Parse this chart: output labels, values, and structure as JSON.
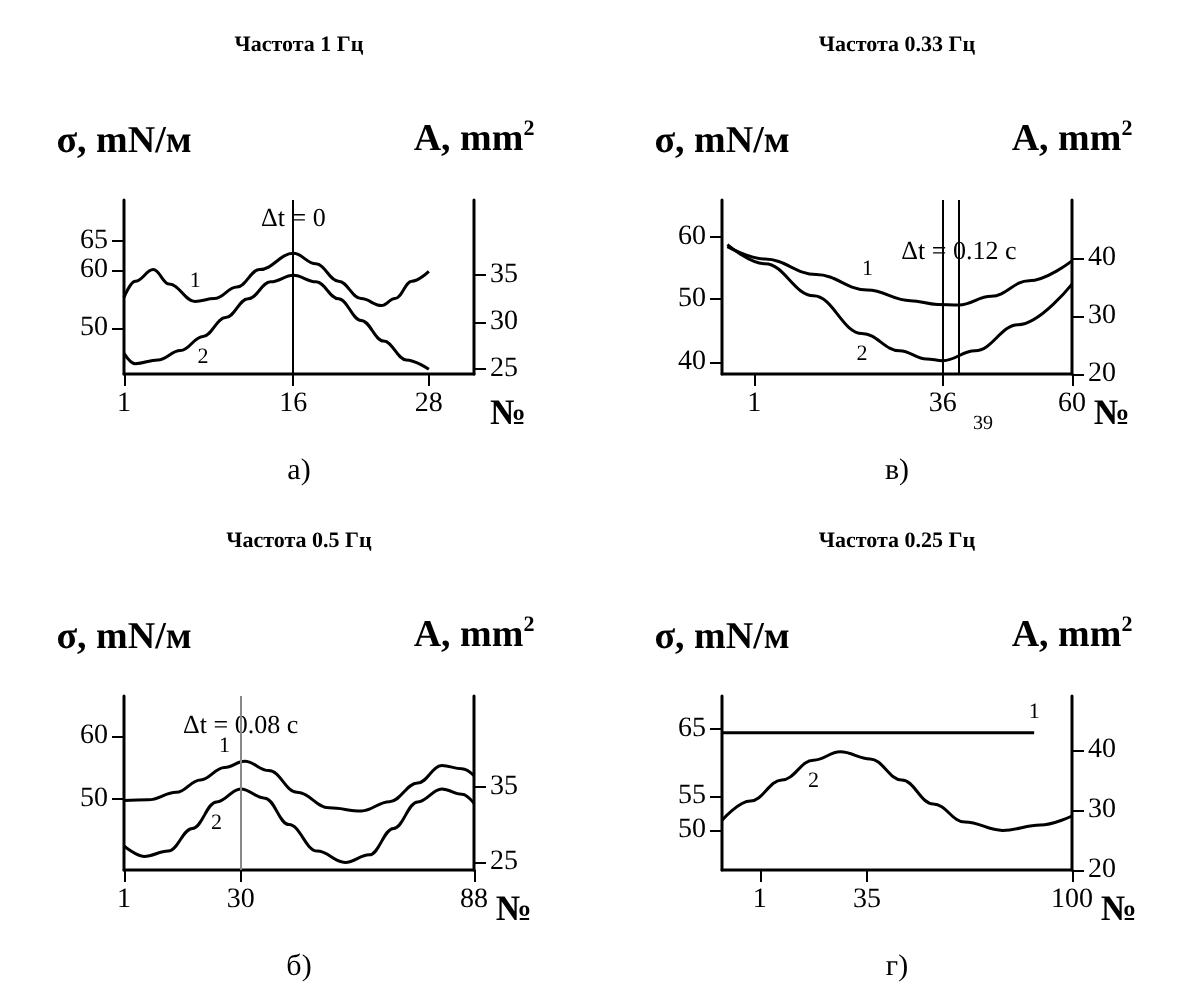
{
  "chart_data": [
    {
      "type": "line",
      "title": "Частота 1 Гц",
      "ylabel": "σ, mN/м",
      "y2label": "A, mm$^{2}$",
      "xlabel": "№",
      "annotations": [
        "а)",
        {
          "text": "Δt = 0",
          "x": 16,
          "y": 69
        }
      ],
      "xlim": [
        1,
        32
      ],
      "xticks": [
        1,
        16,
        28
      ],
      "ylim": [
        42,
        72
      ],
      "yticks": [
        50,
        60,
        65
      ],
      "y2lim": [
        24.5,
        43
      ],
      "y2ticks": [
        25,
        30,
        35
      ],
      "grid": false,
      "legend": false,
      "ref_lines": [
        {
          "axis": "x",
          "value": 16,
          "color": "#000000"
        }
      ],
      "series": [
        {
          "name": "1",
          "color": "#000000",
          "x": [
            1,
            2,
            3.6,
            5,
            7.3,
            9,
            11,
            13,
            16,
            18,
            20,
            22,
            23.8,
            25,
            26.5,
            28
          ],
          "values": [
            55.2,
            58,
            60,
            57.5,
            54.5,
            55,
            57,
            60,
            62.8,
            61,
            58,
            55,
            53.8,
            55,
            58,
            59.7
          ]
        },
        {
          "name": "2",
          "color": "#000000",
          "axis": "y2",
          "x": [
            1,
            2,
            4,
            6,
            8,
            10,
            12,
            14,
            16,
            18,
            20,
            22,
            24,
            26,
            28
          ],
          "values": [
            26.7,
            25.6,
            26,
            27,
            28.5,
            30.5,
            32.5,
            34.3,
            35,
            34.3,
            32.5,
            30.2,
            28,
            26,
            25
          ]
        }
      ]
    },
    {
      "type": "line",
      "title": "Частота 0.33 Гц",
      "ylabel": "σ, mN/м",
      "y2label": "A, mm$^{2}$",
      "xlabel": "№",
      "annotations": [
        "в)",
        {
          "text": "Δt = 0.12 с",
          "x": 39,
          "y": 58
        }
      ],
      "xlim": [
        -5,
        60
      ],
      "xticks": [
        1,
        36,
        60
      ],
      "ylim": [
        38,
        66
      ],
      "yticks": [
        40,
        50,
        60
      ],
      "y2lim": [
        20,
        50
      ],
      "y2ticks": [
        20,
        30,
        40
      ],
      "grid": false,
      "legend": false,
      "ref_lines": [
        {
          "axis": "x",
          "value": 36,
          "color": "#000000"
        },
        {
          "axis": "x",
          "value": 39,
          "label": "39",
          "color": "#000000"
        }
      ],
      "series": [
        {
          "name": "1",
          "color": "#000000",
          "x": [
            -4,
            3,
            12.5,
            22,
            30,
            35,
            39,
            45,
            52,
            60
          ],
          "values": [
            58.5,
            56.5,
            54,
            51.5,
            49.8,
            49.2,
            49.1,
            50.5,
            53,
            56.2
          ]
        },
        {
          "name": "2",
          "color": "#000000",
          "axis": "y2",
          "x": [
            -4,
            3,
            12,
            21,
            28,
            33,
            36,
            42,
            50,
            60
          ],
          "values": [
            42.3,
            39,
            33.5,
            27,
            24,
            22.6,
            22.3,
            24,
            28.5,
            35.5
          ]
        }
      ]
    },
    {
      "type": "line",
      "title": "Частота 0.5 Гц",
      "ylabel": "σ, mN/м",
      "y2label": "A, mm$^{2}$",
      "xlabel": "№",
      "annotations": [
        "б)",
        {
          "text": "Δt = 0.08 с",
          "x": 30,
          "y": 62
        }
      ],
      "xlim": [
        1,
        88
      ],
      "xticks": [
        1,
        30,
        88
      ],
      "ylim": [
        38.5,
        66.5
      ],
      "yticks": [
        50,
        60
      ],
      "y2lim": [
        24,
        47
      ],
      "y2ticks": [
        25,
        35
      ],
      "grid": false,
      "legend": false,
      "ref_lines": [
        {
          "axis": "x",
          "value": 30,
          "color": "#888888"
        }
      ],
      "series": [
        {
          "name": "1",
          "color": "#000000",
          "x": [
            1,
            7,
            14,
            20,
            26,
            31,
            37,
            44,
            52,
            60,
            67,
            74,
            80,
            85,
            88
          ],
          "values": [
            49.7,
            49.8,
            51,
            53,
            55,
            56,
            54.5,
            51,
            48.5,
            48,
            49.5,
            52.5,
            55.3,
            54.8,
            53.7
          ]
        },
        {
          "name": "2",
          "color": "#000000",
          "axis": "y2",
          "x": [
            1,
            6,
            12,
            18,
            24,
            30,
            36,
            42,
            49,
            56,
            62,
            68,
            74,
            80,
            85,
            88
          ],
          "values": [
            27.2,
            25.8,
            26.5,
            29.5,
            33,
            34.7,
            33.5,
            30,
            26.5,
            25,
            26,
            29.5,
            33,
            34.7,
            34,
            32.8
          ]
        }
      ]
    },
    {
      "type": "line",
      "title": "Частота 0.25 Гц",
      "ylabel": "σ, mN/м",
      "y2label": "A, mm$^{2}$",
      "xlabel": "№",
      "annotations": [
        "г)"
      ],
      "xlim": [
        -11,
        100
      ],
      "xticks": [
        1,
        35,
        100
      ],
      "ylim": [
        44,
        70
      ],
      "yticks": [
        50,
        55,
        65
      ],
      "y2lim": [
        20,
        49
      ],
      "y2ticks": [
        20,
        30,
        40
      ],
      "grid": false,
      "legend": false,
      "series": [
        {
          "name": "1",
          "color": "#000000",
          "x": [
            -11,
            88
          ],
          "values": [
            64.5,
            64.5
          ]
        },
        {
          "name": "2",
          "color": "#000000",
          "axis": "y2",
          "x": [
            -11,
            -2,
            8,
            18,
            26.5,
            36,
            46,
            56,
            66,
            78,
            90,
            100
          ],
          "values": [
            28.3,
            31.5,
            35,
            38.3,
            39.7,
            38.5,
            35,
            31,
            28,
            26.6,
            27.5,
            29
          ]
        }
      ]
    }
  ]
}
